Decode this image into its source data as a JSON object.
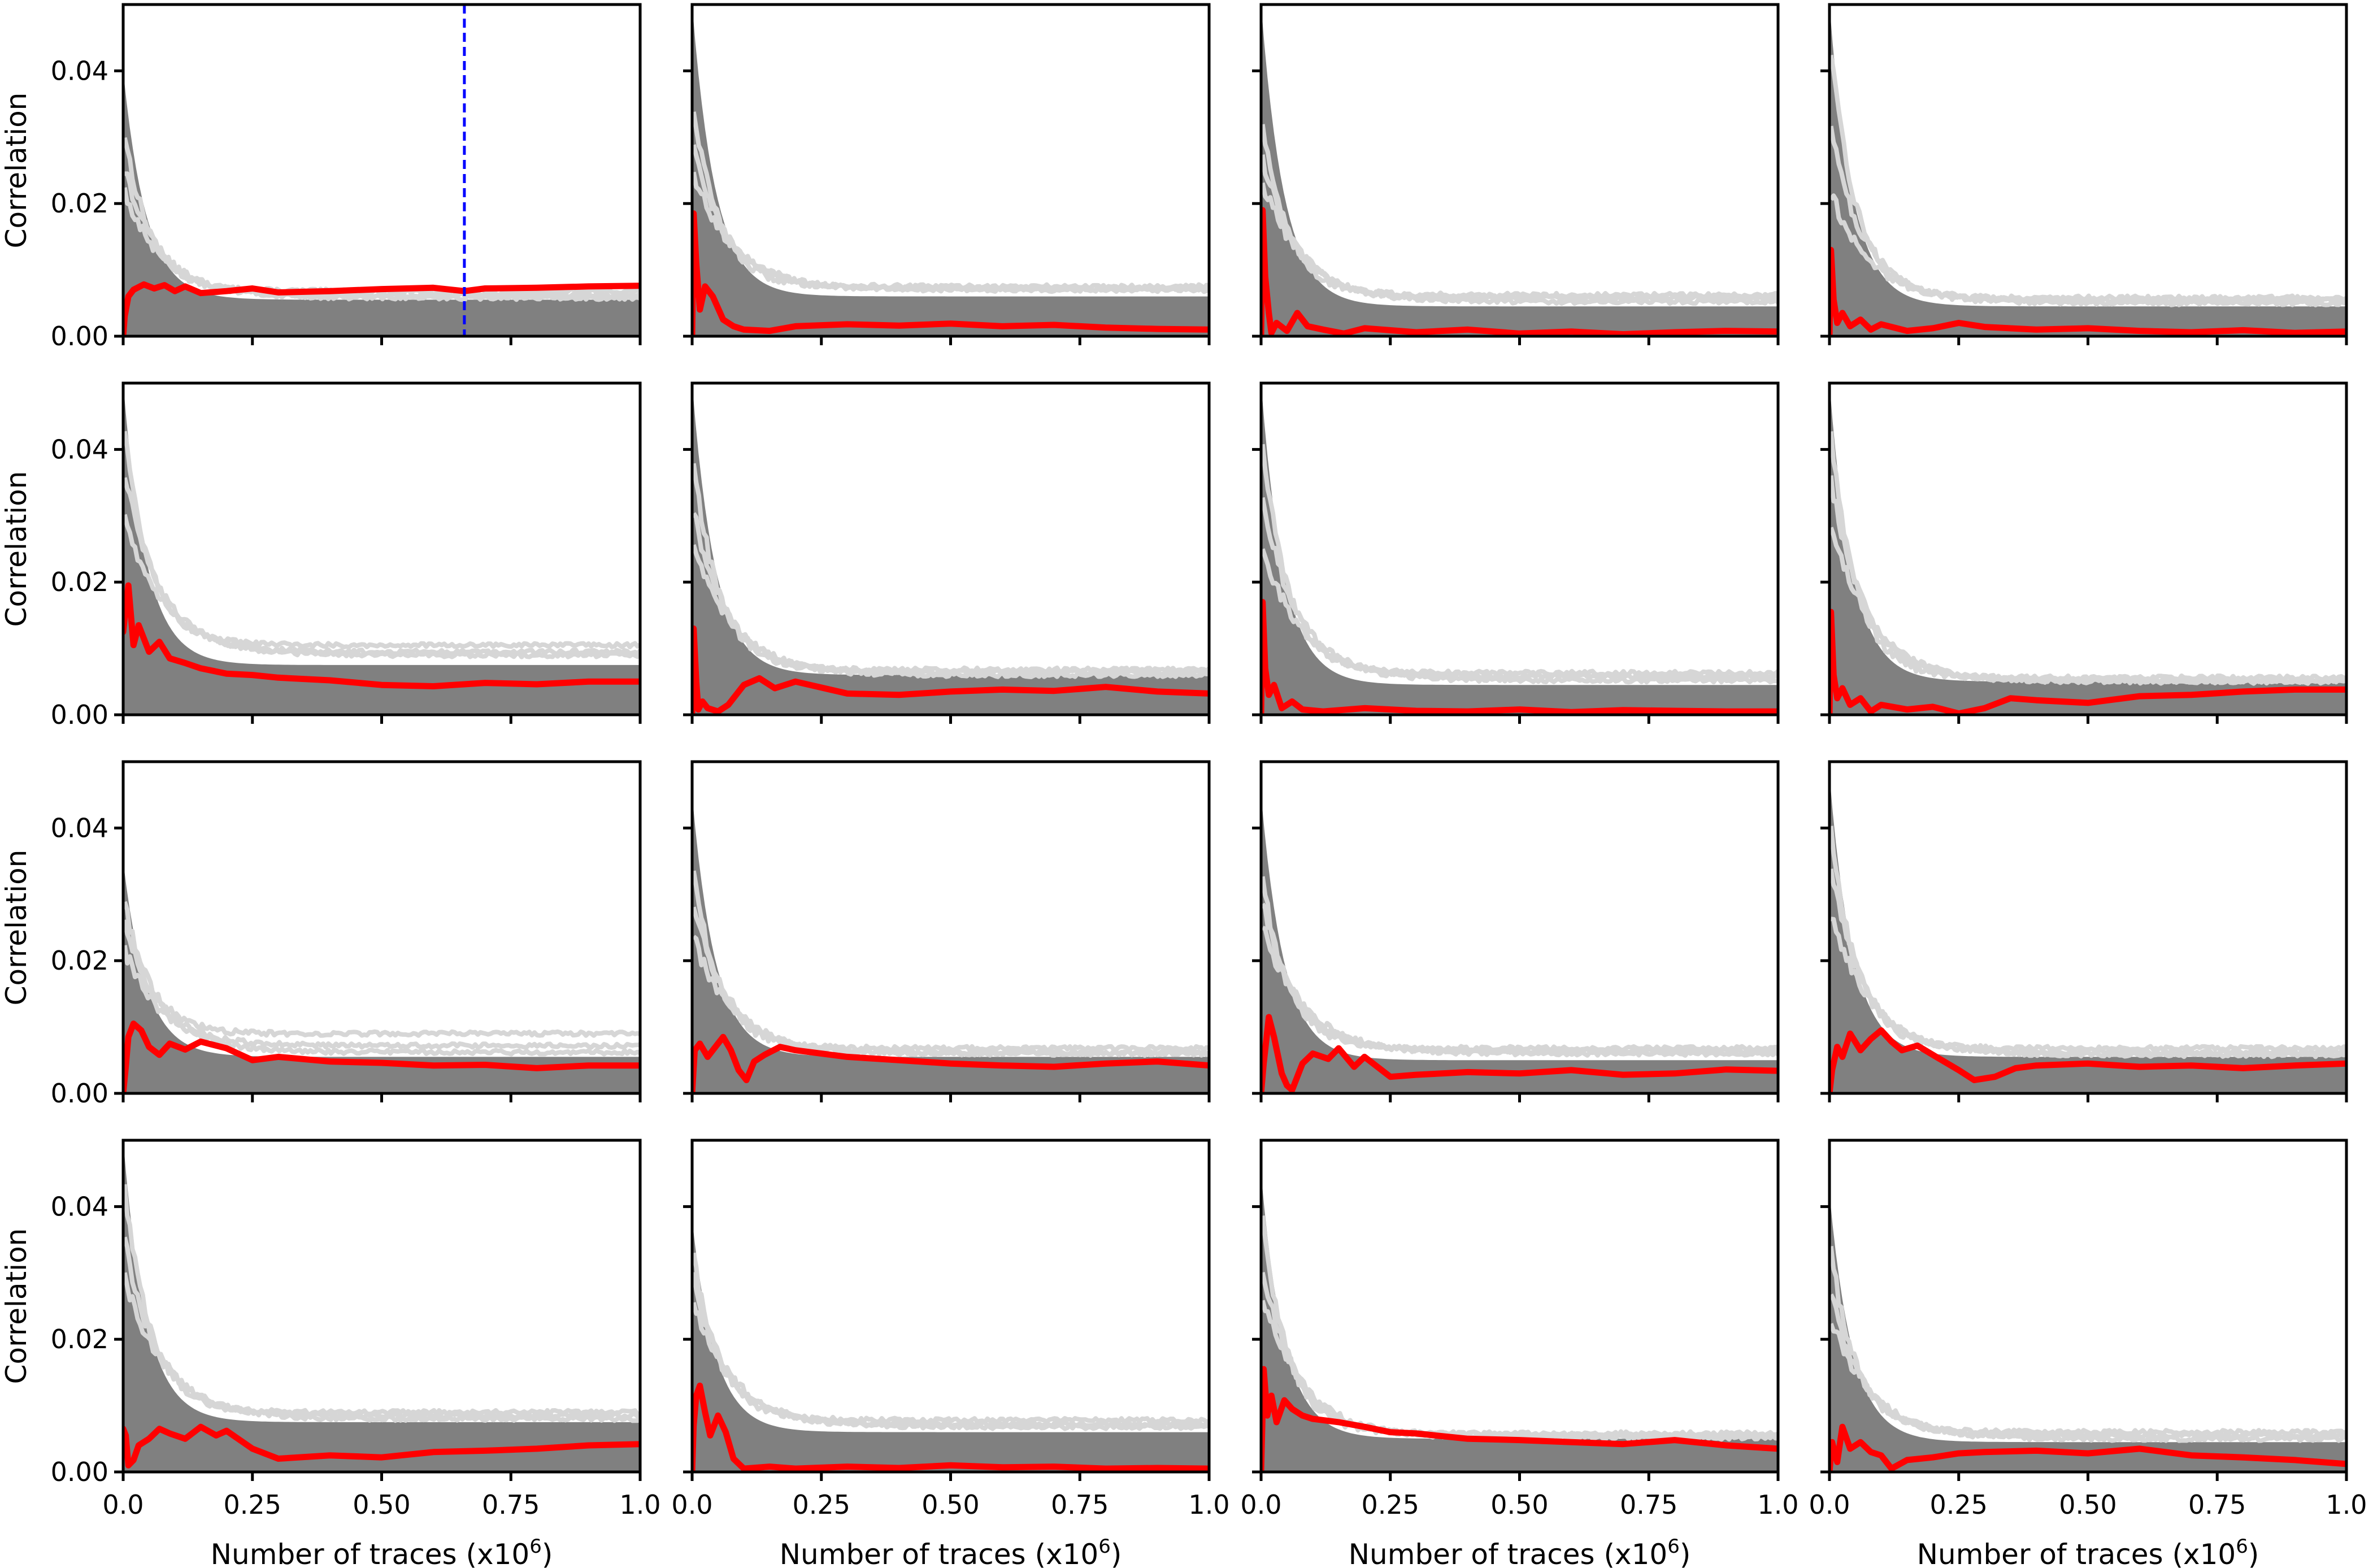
{
  "figure": {
    "rows": 4,
    "cols": 4,
    "sharex": true,
    "sharey": true,
    "colors": {
      "background": "#ffffff",
      "incorrect_guesses": "#808080",
      "incorrect_guesses_light": "#d6d6d6",
      "correct_key": "#ff0000",
      "threshold_line": "#0000ff",
      "axis": "#000000"
    }
  },
  "chart_data": {
    "type": "line",
    "title": "",
    "xlabel": "Number of traces (x10",
    "xlabel_sup": "6",
    "xlabel_close": ")",
    "ylabel": "Correlation",
    "xlim": [
      0,
      1.0
    ],
    "ylim": [
      0,
      0.05
    ],
    "xticks": [
      0.0,
      0.25,
      0.5,
      0.75,
      1.0
    ],
    "xtick_labels": [
      "0.0",
      "0.25",
      "0.50",
      "0.75",
      "1.0"
    ],
    "yticks": [
      0.0,
      0.02,
      0.04
    ],
    "ytick_labels": [
      "0.00",
      "0.02",
      "0.04"
    ],
    "panels": [
      {
        "id": "byte-1",
        "correct_key": {
          "x": [
            0,
            0.003,
            0.01,
            0.02,
            0.04,
            0.06,
            0.08,
            0.1,
            0.12,
            0.15,
            0.2,
            0.25,
            0.3,
            0.4,
            0.5,
            0.6,
            0.66,
            0.7,
            0.8,
            0.9,
            1.0
          ],
          "y": [
            0.0,
            0.003,
            0.006,
            0.007,
            0.0078,
            0.0072,
            0.0077,
            0.0068,
            0.0075,
            0.0065,
            0.0068,
            0.0072,
            0.0066,
            0.0068,
            0.0071,
            0.0073,
            0.0068,
            0.0072,
            0.0073,
            0.0075,
            0.0076
          ]
        },
        "guess_start": 0.04,
        "guess_end": 0.0055,
        "light_spikes": [
          0.032,
          0.026,
          0.022
        ],
        "light_end": [
          0.0068,
          0.0062,
          0.0058
        ],
        "threshold_x": 0.66
      },
      {
        "id": "byte-2",
        "correct_key": {
          "x": [
            0,
            0.003,
            0.008,
            0.015,
            0.025,
            0.04,
            0.06,
            0.08,
            0.1,
            0.15,
            0.2,
            0.3,
            0.4,
            0.5,
            0.6,
            0.7,
            0.8,
            0.9,
            1.0
          ],
          "y": [
            0.0,
            0.0185,
            0.011,
            0.004,
            0.0075,
            0.006,
            0.0025,
            0.0015,
            0.001,
            0.0008,
            0.0015,
            0.0018,
            0.0016,
            0.0019,
            0.0015,
            0.0017,
            0.0013,
            0.0011,
            0.001
          ]
        },
        "guess_start": 0.05,
        "guess_end": 0.006,
        "light_spikes": [
          0.036,
          0.03,
          0.025
        ],
        "light_end": [
          0.0075,
          0.0072,
          0.007
        ]
      },
      {
        "id": "byte-3",
        "correct_key": {
          "x": [
            0,
            0.003,
            0.008,
            0.015,
            0.02,
            0.03,
            0.05,
            0.07,
            0.09,
            0.12,
            0.16,
            0.2,
            0.3,
            0.4,
            0.5,
            0.6,
            0.7,
            0.8,
            0.9,
            1.0
          ],
          "y": [
            0.0,
            0.019,
            0.009,
            0.0035,
            0.0005,
            0.002,
            0.0008,
            0.0035,
            0.0015,
            0.001,
            0.0004,
            0.0012,
            0.0006,
            0.001,
            0.0004,
            0.0007,
            0.0003,
            0.0006,
            0.0008,
            0.0007
          ]
        },
        "guess_start": 0.05,
        "guess_end": 0.0045,
        "light_spikes": [
          0.034,
          0.028,
          0.024
        ],
        "light_end": [
          0.0062,
          0.0058,
          0.0052
        ]
      },
      {
        "id": "byte-4",
        "correct_key": {
          "x": [
            0,
            0.003,
            0.008,
            0.015,
            0.025,
            0.04,
            0.06,
            0.08,
            0.1,
            0.15,
            0.2,
            0.25,
            0.3,
            0.4,
            0.5,
            0.6,
            0.7,
            0.8,
            0.9,
            1.0
          ],
          "y": [
            0.0,
            0.013,
            0.0055,
            0.002,
            0.0035,
            0.0015,
            0.0025,
            0.001,
            0.0018,
            0.0008,
            0.0012,
            0.002,
            0.0014,
            0.001,
            0.0012,
            0.0008,
            0.0006,
            0.0009,
            0.0005,
            0.0007
          ]
        },
        "guess_start": 0.05,
        "guess_end": 0.0045,
        "light_spikes": [
          0.045,
          0.032,
          0.022
        ],
        "light_end": [
          0.0058,
          0.0054,
          0.005
        ]
      },
      {
        "id": "byte-5",
        "correct_key": {
          "x": [
            0,
            0.005,
            0.01,
            0.02,
            0.03,
            0.05,
            0.07,
            0.09,
            0.12,
            0.15,
            0.2,
            0.25,
            0.3,
            0.4,
            0.5,
            0.6,
            0.7,
            0.8,
            0.9,
            1.0
          ],
          "y": [
            0.0125,
            0.016,
            0.0195,
            0.0105,
            0.0135,
            0.0095,
            0.011,
            0.0085,
            0.0078,
            0.007,
            0.0062,
            0.006,
            0.0056,
            0.0052,
            0.0045,
            0.0043,
            0.0048,
            0.0046,
            0.005,
            0.005
          ]
        },
        "guess_start": 0.05,
        "guess_end": 0.0075,
        "light_spikes": [
          0.045,
          0.038,
          0.03
        ],
        "light_end": [
          0.0105,
          0.0095,
          0.009
        ]
      },
      {
        "id": "byte-6",
        "correct_key": {
          "x": [
            0,
            0.003,
            0.008,
            0.012,
            0.02,
            0.03,
            0.05,
            0.07,
            0.1,
            0.13,
            0.16,
            0.2,
            0.3,
            0.4,
            0.5,
            0.6,
            0.7,
            0.8,
            0.9,
            1.0
          ],
          "y": [
            0.0,
            0.013,
            0.005,
            0.0008,
            0.002,
            0.001,
            0.0005,
            0.0015,
            0.0045,
            0.0055,
            0.004,
            0.005,
            0.0032,
            0.003,
            0.0035,
            0.0038,
            0.0036,
            0.0042,
            0.0035,
            0.0032
          ]
        },
        "guess_start": 0.05,
        "guess_end": 0.006,
        "light_spikes": [
          0.04,
          0.032,
          0.026
        ],
        "light_end": [
          0.0068,
          0.0064,
          0.006
        ]
      },
      {
        "id": "byte-7",
        "correct_key": {
          "x": [
            0,
            0.003,
            0.008,
            0.015,
            0.025,
            0.04,
            0.06,
            0.08,
            0.12,
            0.2,
            0.3,
            0.4,
            0.5,
            0.6,
            0.7,
            0.8,
            0.9,
            1.0
          ],
          "y": [
            0.0,
            0.017,
            0.007,
            0.003,
            0.0045,
            0.001,
            0.002,
            0.0008,
            0.0005,
            0.001,
            0.0006,
            0.0005,
            0.0008,
            0.0004,
            0.0007,
            0.0006,
            0.0005,
            0.0005
          ]
        },
        "guess_start": 0.05,
        "guess_end": 0.0045,
        "light_spikes": [
          0.043,
          0.034,
          0.026
        ],
        "light_end": [
          0.0063,
          0.0058,
          0.0052
        ]
      },
      {
        "id": "byte-8",
        "correct_key": {
          "x": [
            0,
            0.003,
            0.008,
            0.015,
            0.025,
            0.04,
            0.06,
            0.08,
            0.1,
            0.15,
            0.2,
            0.25,
            0.3,
            0.35,
            0.4,
            0.5,
            0.6,
            0.7,
            0.8,
            0.9,
            1.0
          ],
          "y": [
            0.0,
            0.0155,
            0.006,
            0.0025,
            0.004,
            0.0015,
            0.0025,
            0.0005,
            0.0015,
            0.0008,
            0.0012,
            0.0002,
            0.001,
            0.0025,
            0.0022,
            0.0018,
            0.0028,
            0.003,
            0.0035,
            0.0038,
            0.0038
          ]
        },
        "guess_start": 0.05,
        "guess_end": 0.005,
        "light_spikes": [
          0.045,
          0.037,
          0.03
        ],
        "light_end": [
          0.0056,
          0.0052,
          0.005
        ]
      },
      {
        "id": "byte-9",
        "correct_key": {
          "x": [
            0,
            0.005,
            0.01,
            0.02,
            0.035,
            0.05,
            0.07,
            0.09,
            0.12,
            0.15,
            0.2,
            0.25,
            0.3,
            0.4,
            0.5,
            0.6,
            0.7,
            0.8,
            0.9,
            1.0
          ],
          "y": [
            0.0,
            0.004,
            0.0085,
            0.0105,
            0.0095,
            0.007,
            0.0058,
            0.0075,
            0.0066,
            0.0078,
            0.0068,
            0.005,
            0.0055,
            0.0048,
            0.0046,
            0.0042,
            0.0043,
            0.0038,
            0.0042,
            0.0042
          ]
        },
        "guess_start": 0.035,
        "guess_end": 0.0055,
        "light_spikes": [
          0.03,
          0.026,
          0.022
        ],
        "light_end": [
          0.009,
          0.0072,
          0.0062
        ]
      },
      {
        "id": "byte-10",
        "correct_key": {
          "x": [
            0,
            0.005,
            0.015,
            0.03,
            0.045,
            0.06,
            0.075,
            0.09,
            0.105,
            0.12,
            0.14,
            0.17,
            0.2,
            0.25,
            0.3,
            0.4,
            0.5,
            0.6,
            0.7,
            0.8,
            0.9,
            1.0
          ],
          "y": [
            0.0,
            0.0065,
            0.0075,
            0.0055,
            0.007,
            0.0085,
            0.0065,
            0.0035,
            0.002,
            0.0048,
            0.0058,
            0.007,
            0.0065,
            0.006,
            0.0055,
            0.005,
            0.0045,
            0.0042,
            0.004,
            0.0045,
            0.0048,
            0.0042
          ]
        },
        "guess_start": 0.045,
        "guess_end": 0.0055,
        "light_spikes": [
          0.035,
          0.03,
          0.024
        ],
        "light_end": [
          0.0068,
          0.0062,
          0.006
        ]
      },
      {
        "id": "byte-11",
        "correct_key": {
          "x": [
            0,
            0.005,
            0.015,
            0.025,
            0.04,
            0.05,
            0.06,
            0.08,
            0.1,
            0.13,
            0.15,
            0.18,
            0.2,
            0.25,
            0.3,
            0.4,
            0.5,
            0.6,
            0.7,
            0.8,
            0.9,
            1.0
          ],
          "y": [
            0.0,
            0.0045,
            0.0115,
            0.0085,
            0.003,
            0.0012,
            0.0005,
            0.0045,
            0.006,
            0.0052,
            0.0068,
            0.004,
            0.0055,
            0.0025,
            0.0028,
            0.0032,
            0.003,
            0.0035,
            0.0028,
            0.003,
            0.0036,
            0.0034
          ]
        },
        "guess_start": 0.045,
        "guess_end": 0.005,
        "light_spikes": [
          0.034,
          0.03,
          0.026
        ],
        "light_end": [
          0.0068,
          0.0064,
          0.006
        ]
      },
      {
        "id": "byte-12",
        "correct_key": {
          "x": [
            0,
            0.005,
            0.015,
            0.025,
            0.04,
            0.06,
            0.08,
            0.1,
            0.12,
            0.14,
            0.17,
            0.2,
            0.25,
            0.28,
            0.32,
            0.36,
            0.4,
            0.5,
            0.6,
            0.7,
            0.8,
            0.9,
            1.0
          ],
          "y": [
            0.0,
            0.0035,
            0.007,
            0.0055,
            0.009,
            0.0065,
            0.0082,
            0.0095,
            0.0078,
            0.0065,
            0.0072,
            0.0058,
            0.0035,
            0.002,
            0.0025,
            0.0038,
            0.0042,
            0.0045,
            0.004,
            0.0042,
            0.0038,
            0.0042,
            0.0045
          ]
        },
        "guess_start": 0.048,
        "guess_end": 0.0055,
        "light_spikes": [
          0.042,
          0.035,
          0.028
        ],
        "light_end": [
          0.0068,
          0.0062,
          0.0058
        ]
      },
      {
        "id": "byte-13",
        "correct_key": {
          "x": [
            0,
            0.005,
            0.01,
            0.02,
            0.03,
            0.05,
            0.07,
            0.09,
            0.12,
            0.15,
            0.18,
            0.2,
            0.25,
            0.3,
            0.4,
            0.5,
            0.6,
            0.7,
            0.8,
            0.9,
            1.0
          ],
          "y": [
            0.0065,
            0.0055,
            0.001,
            0.0018,
            0.004,
            0.005,
            0.0065,
            0.0058,
            0.005,
            0.0068,
            0.0055,
            0.0062,
            0.0035,
            0.002,
            0.0025,
            0.0022,
            0.003,
            0.0032,
            0.0035,
            0.004,
            0.0042
          ]
        },
        "guess_start": 0.05,
        "guess_end": 0.0075,
        "light_spikes": [
          0.045,
          0.036,
          0.03
        ],
        "light_end": [
          0.009,
          0.0085,
          0.008
        ]
      },
      {
        "id": "byte-14",
        "correct_key": {
          "x": [
            0,
            0.003,
            0.008,
            0.015,
            0.025,
            0.035,
            0.05,
            0.065,
            0.08,
            0.1,
            0.15,
            0.2,
            0.3,
            0.4,
            0.5,
            0.6,
            0.7,
            0.8,
            0.9,
            1.0
          ],
          "y": [
            0.0,
            0.007,
            0.0115,
            0.013,
            0.009,
            0.0055,
            0.0085,
            0.006,
            0.002,
            0.0005,
            0.0008,
            0.0005,
            0.0008,
            0.0006,
            0.001,
            0.0007,
            0.0008,
            0.0005,
            0.0006,
            0.0005
          ]
        },
        "guess_start": 0.038,
        "guess_end": 0.006,
        "light_spikes": [
          0.034,
          0.03,
          0.026
        ],
        "light_end": [
          0.0078,
          0.0072,
          0.0068
        ]
      },
      {
        "id": "byte-15",
        "correct_key": {
          "x": [
            0,
            0.005,
            0.012,
            0.02,
            0.03,
            0.045,
            0.06,
            0.08,
            0.1,
            0.15,
            0.2,
            0.25,
            0.3,
            0.4,
            0.5,
            0.6,
            0.7,
            0.8,
            0.9,
            1.0
          ],
          "y": [
            0.0,
            0.0155,
            0.0085,
            0.0115,
            0.0075,
            0.0108,
            0.0095,
            0.0085,
            0.008,
            0.0075,
            0.0068,
            0.006,
            0.0058,
            0.005,
            0.0048,
            0.0045,
            0.0042,
            0.0048,
            0.004,
            0.0035
          ]
        },
        "guess_start": 0.045,
        "guess_end": 0.005,
        "light_spikes": [
          0.04,
          0.032,
          0.027
        ],
        "light_end": [
          0.0058,
          0.0055,
          0.0052
        ]
      },
      {
        "id": "byte-16",
        "correct_key": {
          "x": [
            0,
            0.005,
            0.015,
            0.025,
            0.04,
            0.06,
            0.08,
            0.1,
            0.12,
            0.15,
            0.2,
            0.25,
            0.3,
            0.4,
            0.5,
            0.6,
            0.7,
            0.8,
            0.9,
            1.0
          ],
          "y": [
            0.0,
            0.0045,
            0.0015,
            0.0068,
            0.0035,
            0.0045,
            0.003,
            0.0025,
            0.0005,
            0.0018,
            0.0022,
            0.0028,
            0.003,
            0.0032,
            0.0028,
            0.0035,
            0.0025,
            0.0022,
            0.0018,
            0.0012
          ]
        },
        "guess_start": 0.042,
        "guess_end": 0.0045,
        "light_spikes": [
          0.035,
          0.028,
          0.024
        ],
        "light_end": [
          0.006,
          0.0055,
          0.005
        ]
      }
    ]
  }
}
